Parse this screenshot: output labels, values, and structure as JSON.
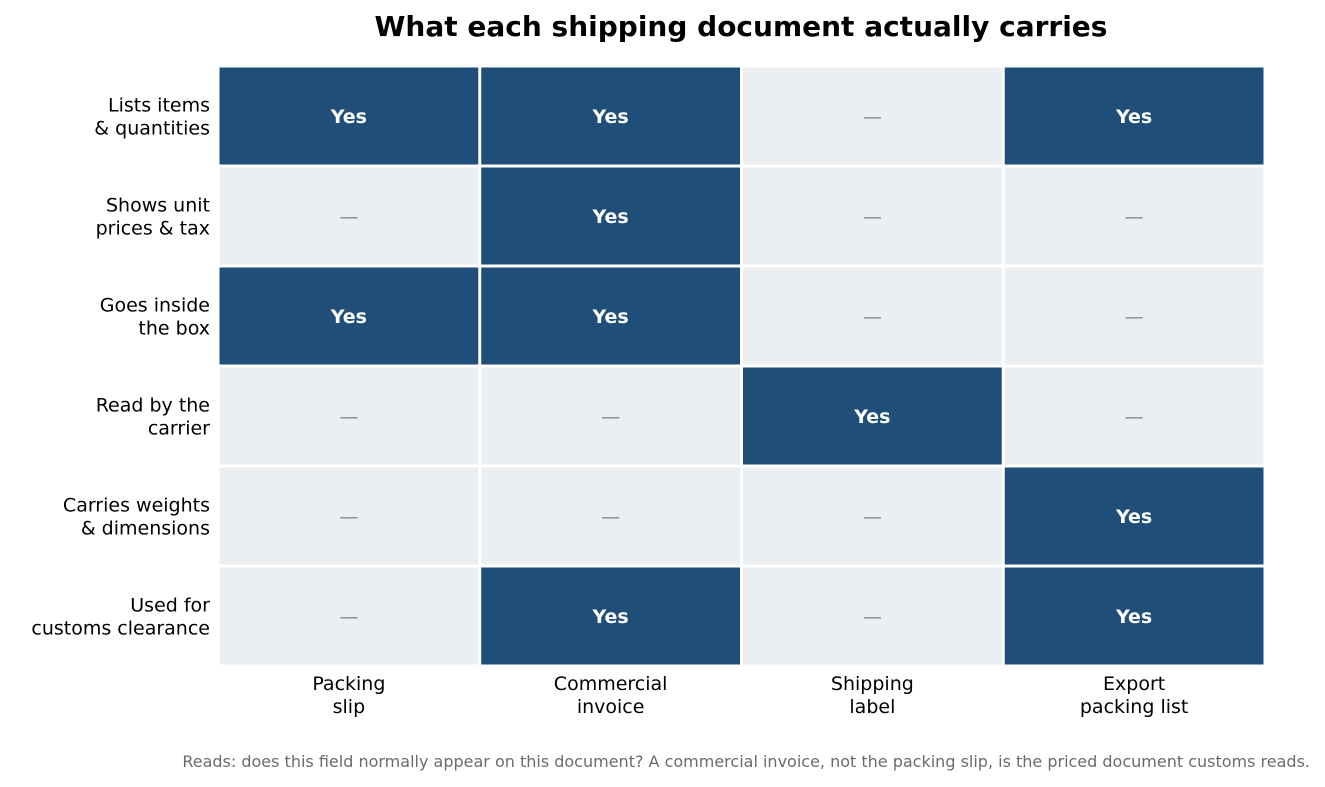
{
  "chart_data": {
    "type": "heatmap",
    "title": "What each shipping document actually carries",
    "columns": [
      "Packing\nslip",
      "Commercial\ninvoice",
      "Shipping\nlabel",
      "Export\npacking list"
    ],
    "rows": [
      "Lists items\n& quantities",
      "Shows unit\nprices & tax",
      "Goes inside\nthe box",
      "Read by the\ncarrier",
      "Carries weights\n& dimensions",
      "Used for\ncustoms clearance"
    ],
    "values": [
      [
        1,
        1,
        0,
        1
      ],
      [
        0,
        1,
        0,
        0
      ],
      [
        1,
        1,
        0,
        0
      ],
      [
        0,
        0,
        1,
        0
      ],
      [
        0,
        0,
        0,
        1
      ],
      [
        0,
        1,
        0,
        1
      ]
    ],
    "labels": {
      "yes": "Yes",
      "no": "—"
    },
    "colors": {
      "yes": "#1f4e79",
      "no": "#eceff2",
      "yes_text": "#ffffff",
      "no_text": "#888888"
    },
    "caption": "Reads: does this field normally appear on this document? A commercial invoice, not the packing slip, is the priced document customs reads."
  }
}
